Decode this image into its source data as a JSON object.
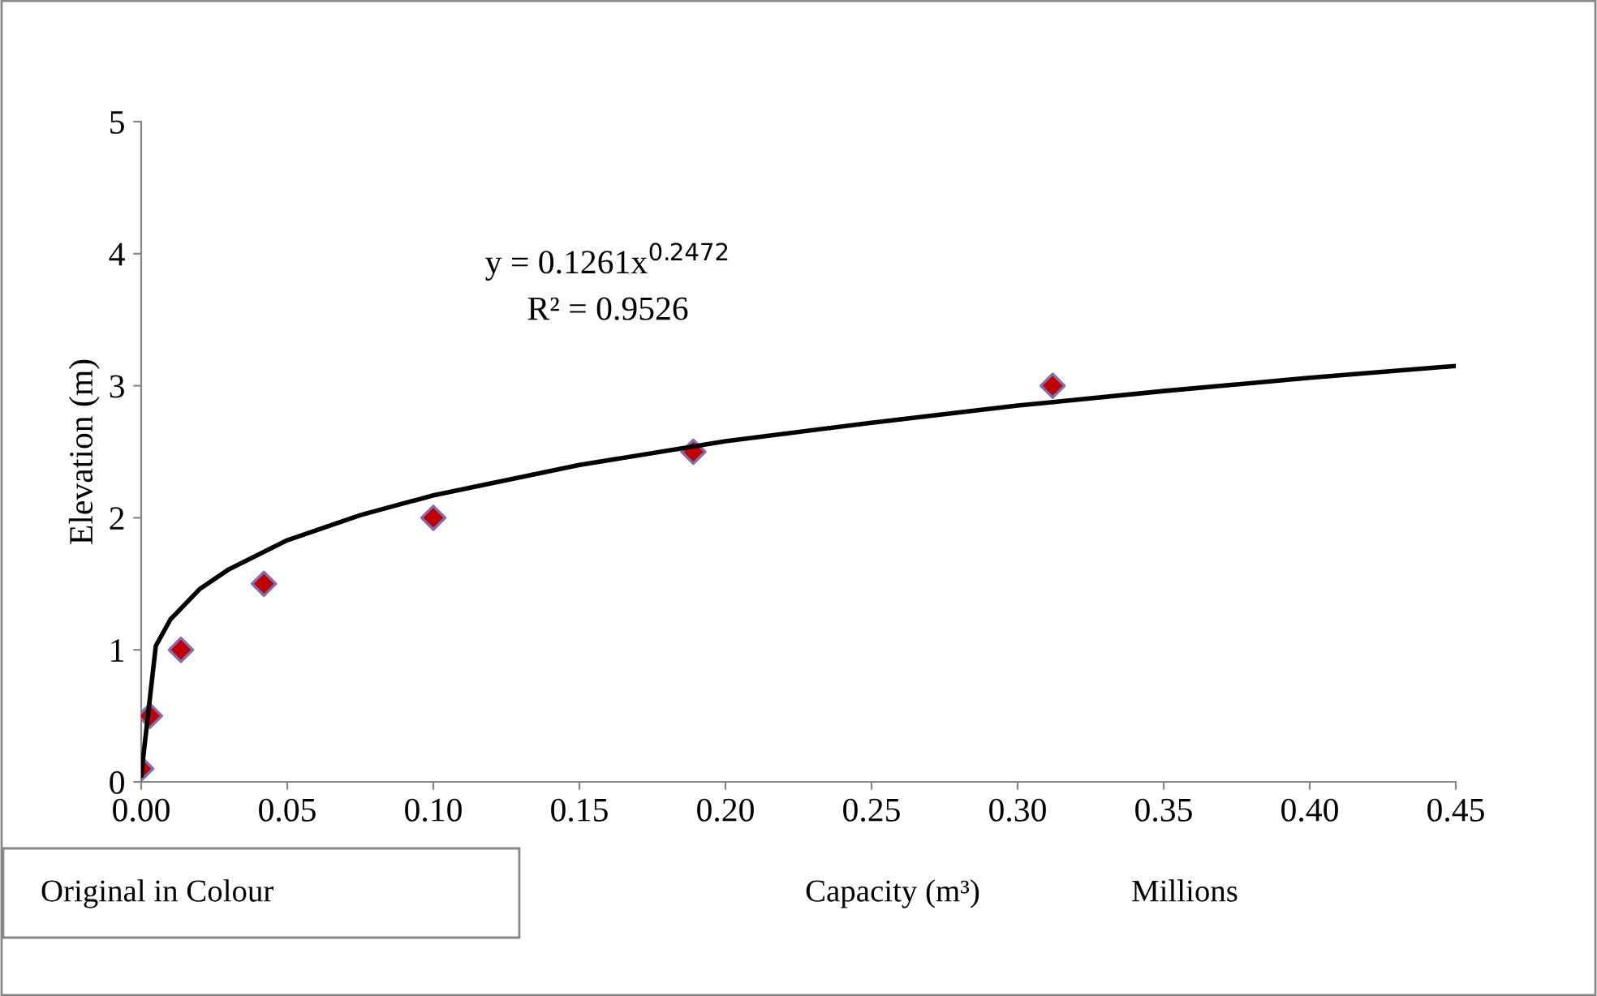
{
  "chart_data": {
    "type": "scatter",
    "xlabel": "Capacity (m³)",
    "ylabel": "Elevation (m)",
    "x": [
      0.0,
      0.003,
      0.0136,
      0.042,
      0.1,
      0.189,
      0.312
    ],
    "series": [
      {
        "color": "#c00000",
        "values": [
          0.1,
          0.5,
          1,
          1.5,
          2,
          2.5,
          3
        ],
        "marker": "diamond"
      },
      {
        "type": "line",
        "color": "#000000",
        "line_style": "solid",
        "marker": "none",
        "x": [
          0.0,
          0.005,
          0.01,
          0.02,
          0.03,
          0.05,
          0.075,
          0.1,
          0.15,
          0.2,
          0.25,
          0.3,
          0.35,
          0.4,
          0.45
        ],
        "values": [
          0.05,
          1.03,
          1.23,
          1.46,
          1.61,
          1.83,
          2.02,
          2.17,
          2.4,
          2.58,
          2.72,
          2.85,
          2.96,
          3.06,
          3.15
        ]
      }
    ],
    "xlim": [
      0,
      0.45
    ],
    "xticks": [
      {
        "value": 0,
        "label": "0.00"
      },
      {
        "value": 0.05,
        "label": "0.05"
      },
      {
        "value": 0.1,
        "label": "0.10"
      },
      {
        "value": 0.15,
        "label": "0.15"
      },
      {
        "value": 0.2,
        "label": "0.20"
      },
      {
        "value": 0.25,
        "label": "0.25"
      },
      {
        "value": 0.3,
        "label": "0.30"
      },
      {
        "value": 0.35,
        "label": "0.35"
      },
      {
        "value": 0.4,
        "label": "0.40"
      },
      {
        "value": 0.45,
        "label": "0.45"
      }
    ],
    "ylim": [
      0,
      5
    ],
    "yticks": [
      0,
      1,
      2,
      3,
      4,
      5
    ],
    "grid": false,
    "legend": false,
    "annotations": [
      "y = 0.1261x$^{0.2472}$",
      "R² = 0.9526",
      "Millions",
      "Original in Colour"
    ]
  }
}
